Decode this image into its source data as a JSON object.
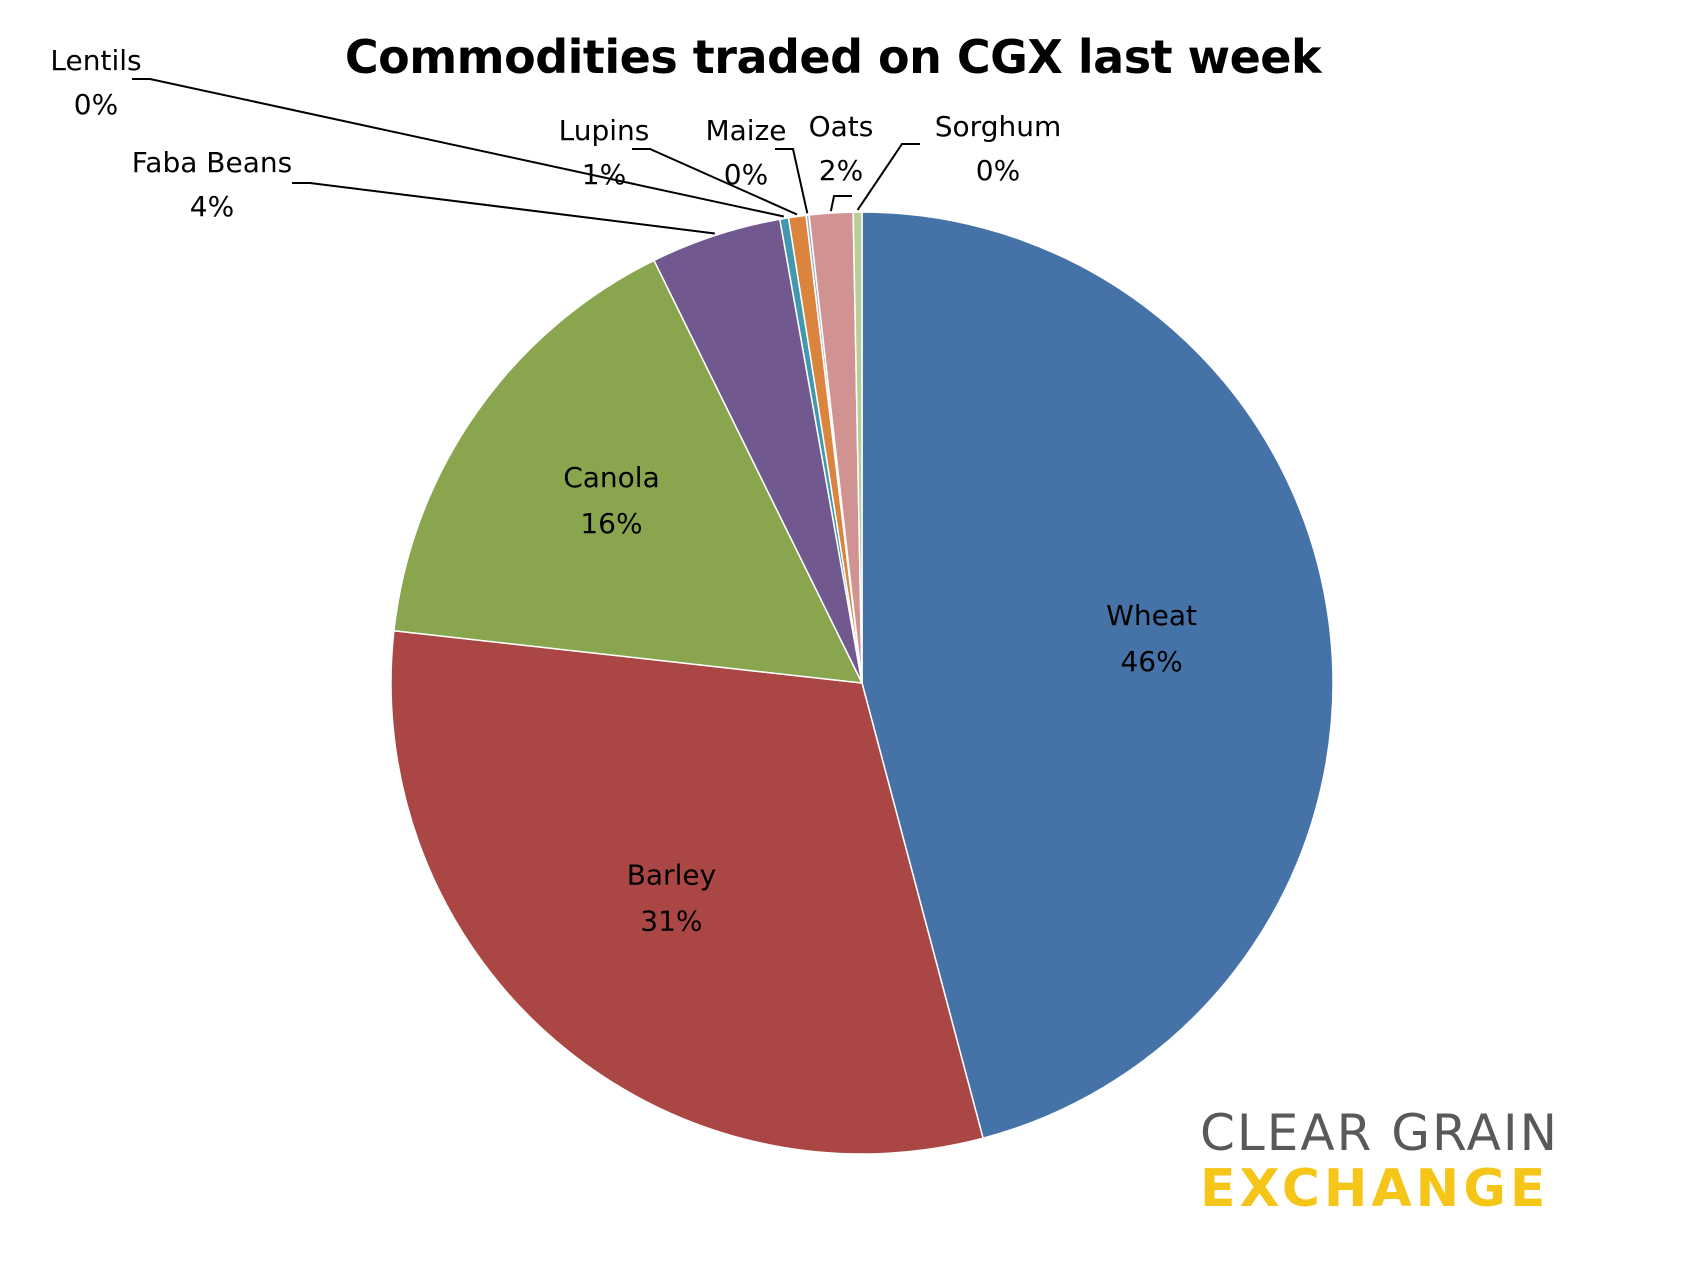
{
  "chart_data": {
    "type": "pie",
    "title": "Commodities traded on CGX last week",
    "slices": [
      {
        "name": "Wheat",
        "value": 46,
        "label": "46%",
        "color": "#4572a7",
        "label_pos": "inside"
      },
      {
        "name": "Barley",
        "value": 31,
        "label": "31%",
        "color": "#aa4643",
        "label_pos": "inside"
      },
      {
        "name": "Canola",
        "value": 16,
        "label": "16%",
        "color": "#89a54e",
        "label_pos": "inside"
      },
      {
        "name": "Faba Beans",
        "value": 4.5,
        "label": "4%",
        "color": "#71588f",
        "label_pos": "outside"
      },
      {
        "name": "Lentils",
        "value": 0.3,
        "label": "0%",
        "color": "#4198af",
        "label_pos": "outside"
      },
      {
        "name": "Lupins",
        "value": 0.6,
        "label": "1%",
        "color": "#db843d",
        "label_pos": "outside"
      },
      {
        "name": "Maize",
        "value": 0.1,
        "label": "0%",
        "color": "#93a9cf",
        "label_pos": "outside"
      },
      {
        "name": "Oats",
        "value": 1.5,
        "label": "2%",
        "color": "#d19392",
        "label_pos": "outside"
      },
      {
        "name": "Sorghum",
        "value": 0.3,
        "label": "0%",
        "color": "#b9cd96",
        "label_pos": "outside"
      }
    ],
    "start": "12 o'clock",
    "direction": "clockwise"
  },
  "logo": {
    "line1": "CLEAR GRAIN",
    "line2": "EXCHANGE",
    "colors": {
      "line1": "#58595b",
      "line2": "#f5c518"
    }
  }
}
